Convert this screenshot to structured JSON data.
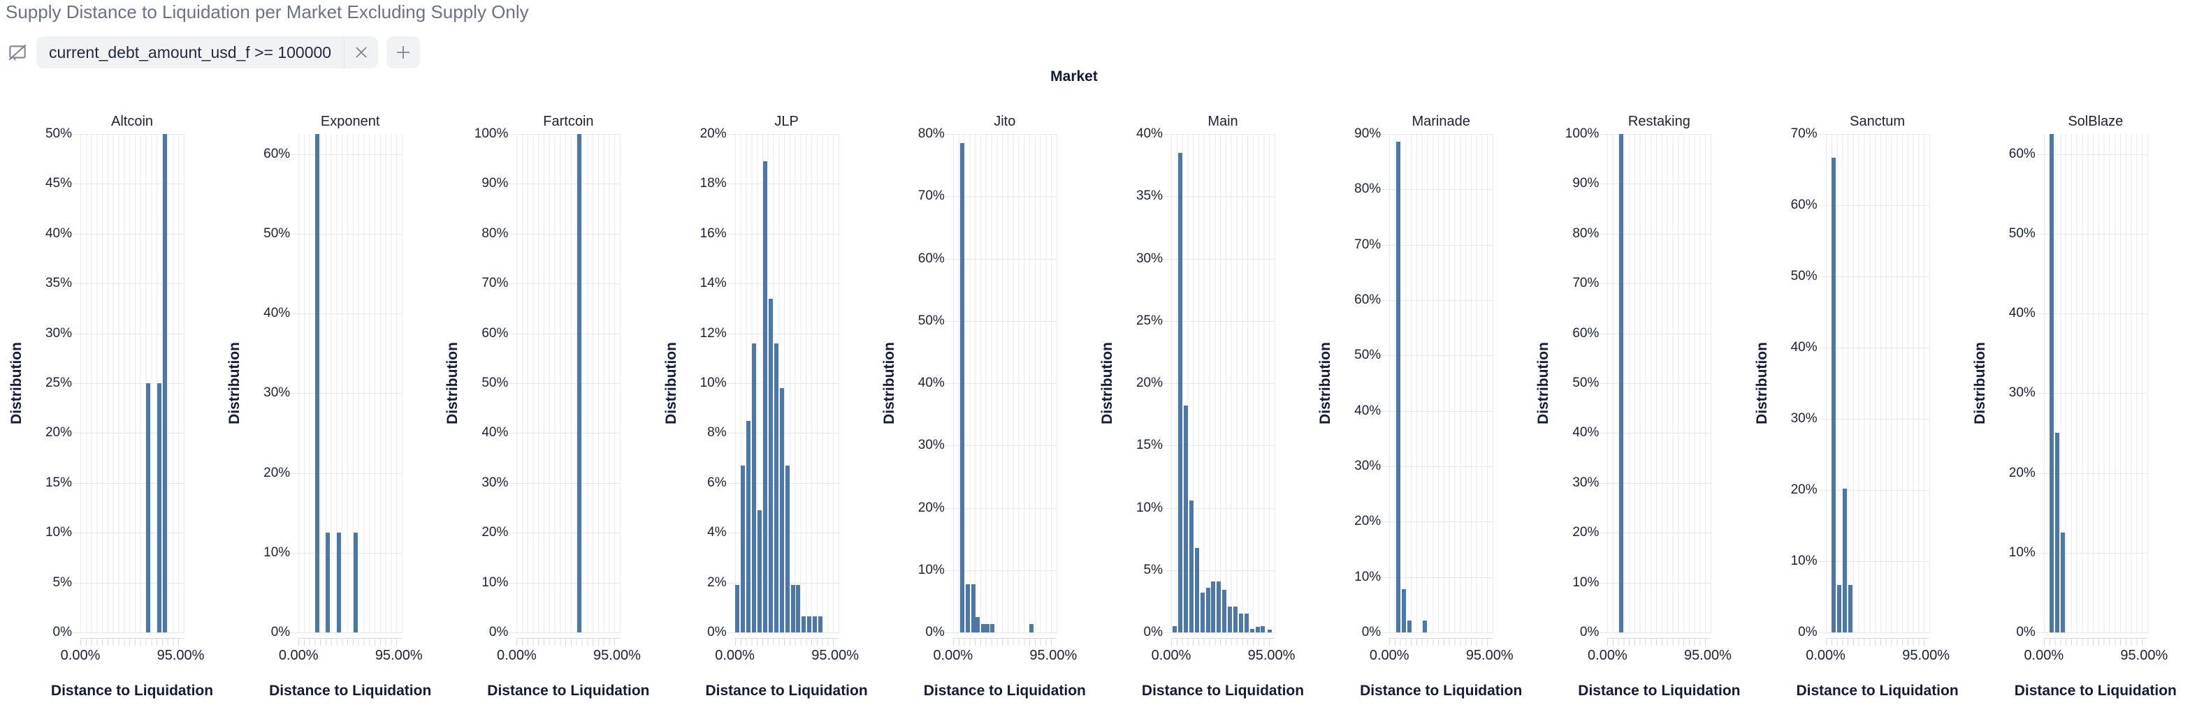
{
  "header": {
    "title": "Supply Distance to Liquidation per Market Excluding Supply Only",
    "filter": {
      "label": "current_debt_amount_usd_f >= 100000",
      "remove_icon": "x",
      "add_icon": "+"
    }
  },
  "facet": {
    "title": "Market"
  },
  "axes": {
    "y_title": "Distribution",
    "x_title": "Distance to Liquidation",
    "x_tick_labels": [
      "0.00%",
      "95.00%"
    ]
  },
  "colors": {
    "bar": "#4c78a8",
    "grid": "#e9e9f1",
    "axis_line": "#d8d8e2",
    "dark_text": "#1b2139",
    "muted_title": "#6a7287",
    "chip_bg": "#f1f2f4",
    "icon_gray": "#7d8497"
  },
  "chart_data": {
    "type": "bar",
    "subtype": "faceted-histograms",
    "facet_field": "Market",
    "xlabel": "Distance to Liquidation",
    "ylabel": "Distribution",
    "x_domain_labels": [
      "0.00%",
      "95.00%"
    ],
    "charts": [
      {
        "market": "Altcoin",
        "y_max": 50,
        "y_ticks": [
          "0%",
          "5%",
          "10%",
          "15%",
          "20%",
          "25%",
          "30%",
          "35%",
          "40%",
          "45%",
          "50%"
        ],
        "bars": [
          {
            "x": 0.635,
            "pct": 25
          },
          {
            "x": 0.74,
            "pct": 25
          },
          {
            "x": 0.795,
            "pct": 50
          }
        ]
      },
      {
        "market": "Exponent",
        "y_max": 62.5,
        "y_ticks": [
          "0%",
          "10%",
          "20%",
          "30%",
          "40%",
          "50%",
          "60%"
        ],
        "bars": [
          {
            "x": 0.16,
            "pct": 62.5
          },
          {
            "x": 0.265,
            "pct": 12.5
          },
          {
            "x": 0.37,
            "pct": 12.5
          },
          {
            "x": 0.53,
            "pct": 12.5
          }
        ]
      },
      {
        "market": "Fartcoin",
        "y_max": 100,
        "y_ticks": [
          "0%",
          "10%",
          "20%",
          "30%",
          "40%",
          "50%",
          "60%",
          "70%",
          "80%",
          "90%",
          "100%"
        ],
        "bars": [
          {
            "x": 0.585,
            "pct": 100
          }
        ]
      },
      {
        "market": "JLP",
        "y_max": 20,
        "y_ticks": [
          "0%",
          "2%",
          "4%",
          "6%",
          "8%",
          "10%",
          "12%",
          "14%",
          "16%",
          "18%",
          "20%"
        ],
        "bars": [
          {
            "x": 0.005,
            "pct": 1.9
          },
          {
            "x": 0.0585,
            "pct": 6.7
          },
          {
            "x": 0.112,
            "pct": 8.5
          },
          {
            "x": 0.1655,
            "pct": 11.6
          },
          {
            "x": 0.219,
            "pct": 4.9
          },
          {
            "x": 0.2725,
            "pct": 18.9
          },
          {
            "x": 0.326,
            "pct": 13.4
          },
          {
            "x": 0.3795,
            "pct": 11.6
          },
          {
            "x": 0.433,
            "pct": 9.8
          },
          {
            "x": 0.4865,
            "pct": 6.7
          },
          {
            "x": 0.54,
            "pct": 1.9
          },
          {
            "x": 0.5935,
            "pct": 1.9
          },
          {
            "x": 0.647,
            "pct": 0.65
          },
          {
            "x": 0.7005,
            "pct": 0.65
          },
          {
            "x": 0.754,
            "pct": 0.65
          },
          {
            "x": 0.8075,
            "pct": 0.65
          }
        ]
      },
      {
        "market": "Jito",
        "y_max": 80,
        "y_ticks": [
          "0%",
          "10%",
          "20%",
          "30%",
          "40%",
          "50%",
          "60%",
          "70%",
          "80%"
        ],
        "bars": [
          {
            "x": 0.07,
            "pct": 78.5
          },
          {
            "x": 0.125,
            "pct": 7.7
          },
          {
            "x": 0.175,
            "pct": 7.7
          },
          {
            "x": 0.22,
            "pct": 2.5
          },
          {
            "x": 0.27,
            "pct": 1.3
          },
          {
            "x": 0.315,
            "pct": 1.3
          },
          {
            "x": 0.36,
            "pct": 1.3
          },
          {
            "x": 0.735,
            "pct": 1.3
          }
        ]
      },
      {
        "market": "Main",
        "y_max": 40,
        "y_ticks": [
          "0%",
          "5%",
          "10%",
          "15%",
          "20%",
          "25%",
          "30%",
          "35%",
          "40%"
        ],
        "bars": [
          {
            "x": 0.015,
            "pct": 0.5
          },
          {
            "x": 0.068,
            "pct": 38.5
          },
          {
            "x": 0.122,
            "pct": 18.2
          },
          {
            "x": 0.175,
            "pct": 10.6
          },
          {
            "x": 0.228,
            "pct": 6.8
          },
          {
            "x": 0.282,
            "pct": 3.2
          },
          {
            "x": 0.335,
            "pct": 3.6
          },
          {
            "x": 0.388,
            "pct": 4.1
          },
          {
            "x": 0.442,
            "pct": 4.1
          },
          {
            "x": 0.495,
            "pct": 3.4
          },
          {
            "x": 0.548,
            "pct": 2.1
          },
          {
            "x": 0.602,
            "pct": 2.1
          },
          {
            "x": 0.655,
            "pct": 1.5
          },
          {
            "x": 0.708,
            "pct": 1.5
          },
          {
            "x": 0.762,
            "pct": 0.3
          },
          {
            "x": 0.815,
            "pct": 0.45
          },
          {
            "x": 0.868,
            "pct": 0.5
          },
          {
            "x": 0.935,
            "pct": 0.2
          }
        ]
      },
      {
        "market": "Marinade",
        "y_max": 90,
        "y_ticks": [
          "0%",
          "10%",
          "20%",
          "30%",
          "40%",
          "50%",
          "60%",
          "70%",
          "80%",
          "90%"
        ],
        "bars": [
          {
            "x": 0.068,
            "pct": 88.6
          },
          {
            "x": 0.122,
            "pct": 7.8
          },
          {
            "x": 0.175,
            "pct": 2.2
          },
          {
            "x": 0.32,
            "pct": 2.2
          }
        ]
      },
      {
        "market": "Restaking",
        "y_max": 100,
        "y_ticks": [
          "0%",
          "10%",
          "20%",
          "30%",
          "40%",
          "50%",
          "60%",
          "70%",
          "80%",
          "90%",
          "100%"
        ],
        "bars": [
          {
            "x": 0.115,
            "pct": 100
          }
        ]
      },
      {
        "market": "Sanctum",
        "y_max": 70,
        "y_ticks": [
          "0%",
          "10%",
          "20%",
          "30%",
          "40%",
          "50%",
          "60%",
          "70%"
        ],
        "bars": [
          {
            "x": 0.06,
            "pct": 66.7
          },
          {
            "x": 0.113,
            "pct": 6.7
          },
          {
            "x": 0.166,
            "pct": 20.2
          },
          {
            "x": 0.22,
            "pct": 6.7
          }
        ]
      },
      {
        "market": "SolBlaze",
        "y_max": 62.5,
        "y_ticks": [
          "0%",
          "10%",
          "20%",
          "30%",
          "40%",
          "50%",
          "60%"
        ],
        "bars": [
          {
            "x": 0.055,
            "pct": 62.5
          },
          {
            "x": 0.108,
            "pct": 25
          },
          {
            "x": 0.162,
            "pct": 12.5
          }
        ]
      }
    ]
  }
}
